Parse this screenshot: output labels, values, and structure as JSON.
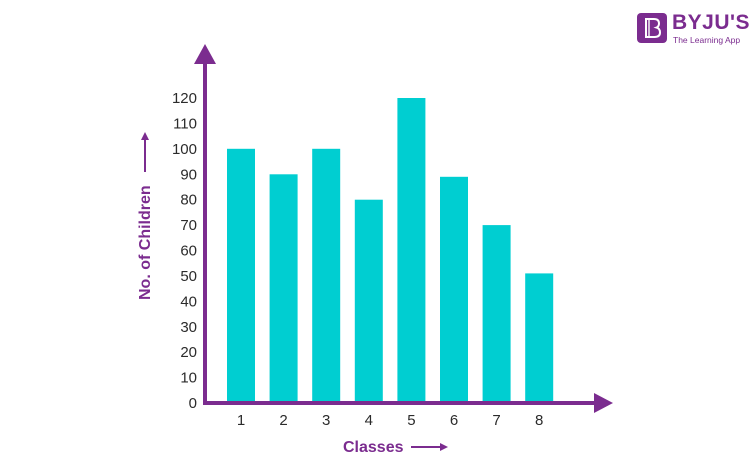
{
  "brand": {
    "name": "BYJU'S",
    "tagline": "The Learning App",
    "logo_color": "#7b2c8f"
  },
  "chart_data": {
    "type": "bar",
    "title": "",
    "xlabel": "Classes",
    "ylabel": "No. of Children",
    "categories": [
      "1",
      "2",
      "3",
      "4",
      "5",
      "6",
      "7",
      "8"
    ],
    "values": [
      100,
      90,
      100,
      80,
      120,
      89,
      70,
      51
    ],
    "ylim": [
      0,
      120
    ],
    "yticks": [
      0,
      10,
      20,
      30,
      40,
      50,
      60,
      70,
      80,
      90,
      100,
      110,
      120
    ],
    "grid": false,
    "bar_color": "#00ced1",
    "axis_color": "#7b2c8f"
  }
}
